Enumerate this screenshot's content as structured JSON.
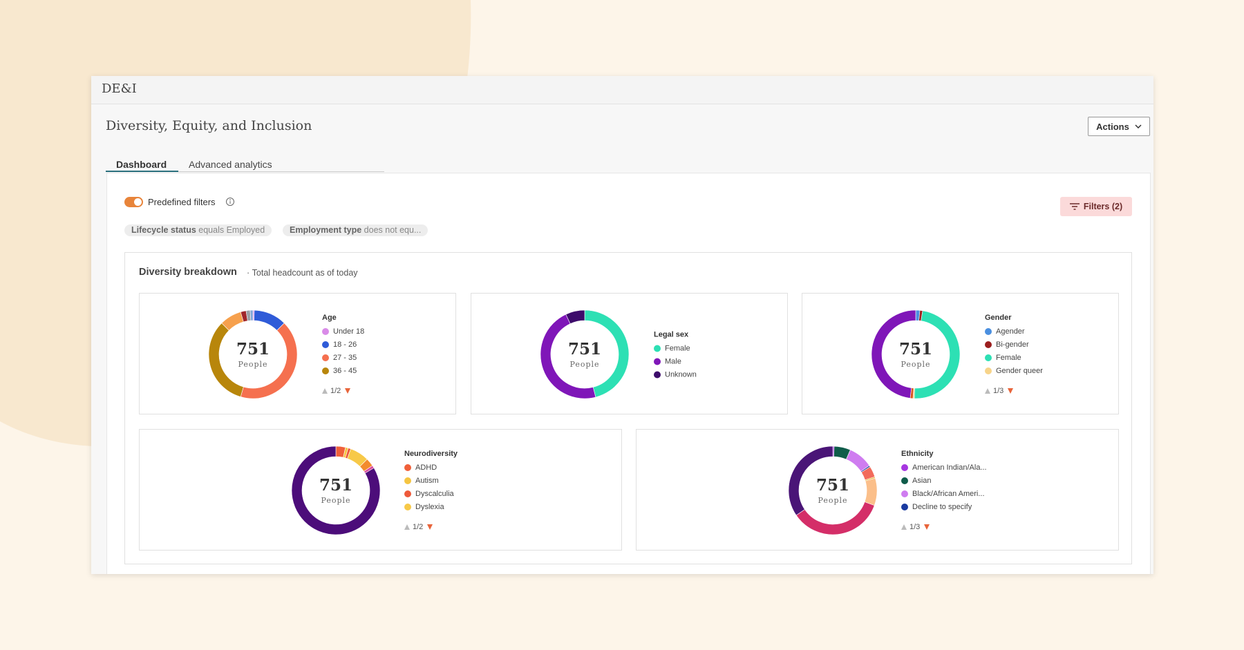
{
  "header": {
    "app_name": "DE&I"
  },
  "page": {
    "title": "Diversity, Equity, and Inclusion",
    "actions_button": "Actions",
    "tabs": [
      "Dashboard",
      "Advanced analytics"
    ]
  },
  "filters": {
    "toggle_label": "Predefined filters",
    "filters_button": "Filters (2)",
    "chips": [
      {
        "field": "Lifecycle status",
        "condition": "equals Employed"
      },
      {
        "field": "Employment type",
        "condition": "does not equ..."
      }
    ]
  },
  "breakdown": {
    "title": "Diversity breakdown",
    "subtitle": "Total headcount as of today"
  },
  "chart_data": [
    {
      "type": "donut",
      "title": "Age",
      "center_value": 751,
      "center_label": "People",
      "legend_page": "1/2",
      "categories": [
        "Under 18",
        "18 - 26",
        "27 - 35",
        "36 - 45",
        null,
        null,
        null,
        null
      ],
      "values": [
        0.5,
        12,
        42,
        33,
        8,
        2,
        1.5,
        1
      ],
      "colors": [
        "#d98be8",
        "#2f5bd8",
        "#f5704f",
        "#b8860b",
        "#f6a04d",
        "#a0262a",
        "#9aa0a6",
        "#7fa4d8"
      ]
    },
    {
      "type": "donut",
      "title": "Legal sex",
      "center_value": 751,
      "center_label": "People",
      "categories": [
        "Female",
        "Male",
        "Unknown"
      ],
      "values": [
        46,
        47,
        7
      ],
      "colors": [
        "#2de0b4",
        "#7f16b8",
        "#3d0c6b"
      ]
    },
    {
      "type": "donut",
      "title": "Gender",
      "center_value": 751,
      "center_label": "People",
      "legend_page": "1/3",
      "categories": [
        "Agender",
        "Bi-gender",
        "Female",
        "Gender queer",
        null,
        null
      ],
      "values": [
        1.5,
        1,
        48,
        0.5,
        1,
        48
      ],
      "colors": [
        "#4a8fe0",
        "#9b1f1f",
        "#2de0b4",
        "#f7d48a",
        "#d9541e",
        "#7f16b8"
      ]
    },
    {
      "type": "donut",
      "title": "Neurodiversity",
      "center_value": 751,
      "center_label": "People",
      "legend_page": "1/2",
      "categories": [
        "ADHD",
        "Autism",
        "Dyscalculia",
        "Dyslexia",
        null,
        null,
        null
      ],
      "values": [
        3.5,
        1,
        1,
        7,
        3,
        1,
        83.5
      ],
      "colors": [
        "#f0603a",
        "#f5c542",
        "#ee5a3a",
        "#f7c948",
        "#f38b2e",
        "#d94ea0",
        "#4c0d7a"
      ]
    },
    {
      "type": "donut",
      "title": "Ethnicity",
      "center_value": 751,
      "center_label": "People",
      "legend_page": "1/3",
      "categories": [
        "American Indian/Ala...",
        "Asian",
        "Black/African Ameri...",
        "Decline to specify",
        null,
        null,
        null,
        null,
        null
      ],
      "values": [
        0.5,
        6,
        9,
        0.5,
        4,
        0.5,
        10,
        35,
        34.5
      ],
      "colors": [
        "#a636e0",
        "#0f5c4a",
        "#cf7cf0",
        "#1a3aa0",
        "#f26b5b",
        "#e8b73d",
        "#fbbf8a",
        "#d42e68",
        "#4a1577"
      ]
    }
  ]
}
